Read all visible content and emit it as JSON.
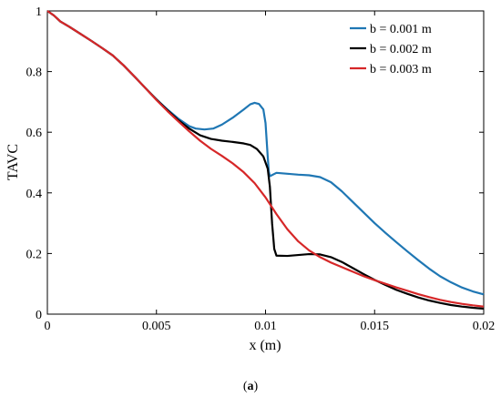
{
  "caption_open": "(",
  "caption_letter": "a",
  "caption_close": ")",
  "chart_data": {
    "type": "line",
    "title": "",
    "xlabel": "x (m)",
    "ylabel": "TAVC",
    "xlim": [
      0,
      0.02
    ],
    "ylim": [
      0,
      1
    ],
    "xticks": [
      0,
      0.005,
      0.01,
      0.015,
      0.02
    ],
    "xtick_labels": [
      "0",
      "0.005",
      "0.01",
      "0.015",
      "0.02"
    ],
    "yticks": [
      0,
      0.2,
      0.4,
      0.6,
      0.8,
      1
    ],
    "ytick_labels": [
      "0",
      "0.2",
      "0.4",
      "0.6",
      "0.8",
      "1"
    ],
    "grid": false,
    "legend_position": "top-right",
    "series": [
      {
        "name": "b = 0.001 m",
        "color": "#1f77b4",
        "points": [
          [
            0,
            1.0
          ],
          [
            0.0003,
            0.985
          ],
          [
            0.0006,
            0.965
          ],
          [
            0.001,
            0.948
          ],
          [
            0.0015,
            0.925
          ],
          [
            0.002,
            0.902
          ],
          [
            0.0025,
            0.878
          ],
          [
            0.003,
            0.853
          ],
          [
            0.0035,
            0.82
          ],
          [
            0.004,
            0.783
          ],
          [
            0.0045,
            0.745
          ],
          [
            0.005,
            0.708
          ],
          [
            0.0055,
            0.675
          ],
          [
            0.006,
            0.645
          ],
          [
            0.0065,
            0.62
          ],
          [
            0.0068,
            0.612
          ],
          [
            0.0072,
            0.609
          ],
          [
            0.0076,
            0.612
          ],
          [
            0.008,
            0.625
          ],
          [
            0.0085,
            0.648
          ],
          [
            0.009,
            0.675
          ],
          [
            0.0093,
            0.692
          ],
          [
            0.0095,
            0.697
          ],
          [
            0.0097,
            0.693
          ],
          [
            0.0099,
            0.675
          ],
          [
            0.01,
            0.63
          ],
          [
            0.0101,
            0.52
          ],
          [
            0.01015,
            0.47
          ],
          [
            0.0102,
            0.455
          ],
          [
            0.0105,
            0.466
          ],
          [
            0.011,
            0.463
          ],
          [
            0.0115,
            0.46
          ],
          [
            0.012,
            0.458
          ],
          [
            0.0125,
            0.452
          ],
          [
            0.013,
            0.435
          ],
          [
            0.0135,
            0.405
          ],
          [
            0.014,
            0.37
          ],
          [
            0.0145,
            0.335
          ],
          [
            0.015,
            0.3
          ],
          [
            0.0155,
            0.268
          ],
          [
            0.016,
            0.237
          ],
          [
            0.0165,
            0.207
          ],
          [
            0.017,
            0.178
          ],
          [
            0.0175,
            0.15
          ],
          [
            0.018,
            0.125
          ],
          [
            0.0185,
            0.105
          ],
          [
            0.019,
            0.088
          ],
          [
            0.0195,
            0.075
          ],
          [
            0.02,
            0.065
          ]
        ]
      },
      {
        "name": "b = 0.002 m",
        "color": "#000000",
        "points": [
          [
            0,
            1.0
          ],
          [
            0.0003,
            0.985
          ],
          [
            0.0006,
            0.965
          ],
          [
            0.001,
            0.948
          ],
          [
            0.0015,
            0.925
          ],
          [
            0.002,
            0.902
          ],
          [
            0.0025,
            0.878
          ],
          [
            0.003,
            0.853
          ],
          [
            0.0035,
            0.82
          ],
          [
            0.004,
            0.783
          ],
          [
            0.0045,
            0.745
          ],
          [
            0.005,
            0.708
          ],
          [
            0.0055,
            0.673
          ],
          [
            0.006,
            0.64
          ],
          [
            0.0065,
            0.612
          ],
          [
            0.007,
            0.59
          ],
          [
            0.0075,
            0.578
          ],
          [
            0.008,
            0.572
          ],
          [
            0.0085,
            0.568
          ],
          [
            0.009,
            0.563
          ],
          [
            0.0093,
            0.558
          ],
          [
            0.0096,
            0.545
          ],
          [
            0.0099,
            0.52
          ],
          [
            0.0101,
            0.48
          ],
          [
            0.0102,
            0.42
          ],
          [
            0.0103,
            0.3
          ],
          [
            0.0104,
            0.215
          ],
          [
            0.0105,
            0.193
          ],
          [
            0.011,
            0.192
          ],
          [
            0.0115,
            0.195
          ],
          [
            0.012,
            0.198
          ],
          [
            0.0125,
            0.197
          ],
          [
            0.013,
            0.188
          ],
          [
            0.0135,
            0.172
          ],
          [
            0.014,
            0.152
          ],
          [
            0.0145,
            0.132
          ],
          [
            0.015,
            0.113
          ],
          [
            0.0155,
            0.096
          ],
          [
            0.016,
            0.08
          ],
          [
            0.0165,
            0.067
          ],
          [
            0.017,
            0.055
          ],
          [
            0.0175,
            0.045
          ],
          [
            0.018,
            0.037
          ],
          [
            0.0185,
            0.03
          ],
          [
            0.019,
            0.025
          ],
          [
            0.0195,
            0.021
          ],
          [
            0.02,
            0.018
          ]
        ]
      },
      {
        "name": "b = 0.003 m",
        "color": "#d62728",
        "points": [
          [
            0,
            1.0
          ],
          [
            0.0003,
            0.985
          ],
          [
            0.0006,
            0.965
          ],
          [
            0.001,
            0.948
          ],
          [
            0.0015,
            0.925
          ],
          [
            0.002,
            0.902
          ],
          [
            0.0025,
            0.878
          ],
          [
            0.003,
            0.853
          ],
          [
            0.0035,
            0.82
          ],
          [
            0.004,
            0.783
          ],
          [
            0.0045,
            0.745
          ],
          [
            0.005,
            0.706
          ],
          [
            0.0055,
            0.67
          ],
          [
            0.006,
            0.636
          ],
          [
            0.0065,
            0.603
          ],
          [
            0.007,
            0.572
          ],
          [
            0.0075,
            0.545
          ],
          [
            0.008,
            0.522
          ],
          [
            0.0085,
            0.497
          ],
          [
            0.009,
            0.468
          ],
          [
            0.0095,
            0.432
          ],
          [
            0.01,
            0.385
          ],
          [
            0.0105,
            0.33
          ],
          [
            0.011,
            0.28
          ],
          [
            0.0115,
            0.24
          ],
          [
            0.012,
            0.21
          ],
          [
            0.0125,
            0.188
          ],
          [
            0.013,
            0.17
          ],
          [
            0.0135,
            0.155
          ],
          [
            0.014,
            0.14
          ],
          [
            0.0145,
            0.125
          ],
          [
            0.015,
            0.112
          ],
          [
            0.0155,
            0.1
          ],
          [
            0.016,
            0.088
          ],
          [
            0.0165,
            0.077
          ],
          [
            0.017,
            0.066
          ],
          [
            0.0175,
            0.056
          ],
          [
            0.018,
            0.047
          ],
          [
            0.0185,
            0.04
          ],
          [
            0.019,
            0.034
          ],
          [
            0.0195,
            0.029
          ],
          [
            0.02,
            0.025
          ]
        ]
      }
    ]
  }
}
